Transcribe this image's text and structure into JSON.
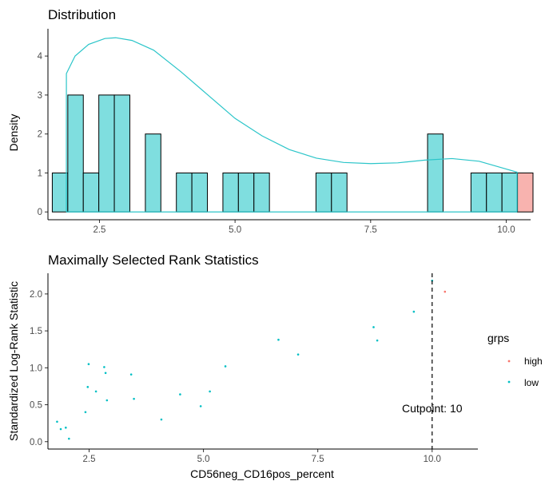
{
  "chart_data": [
    {
      "type": "bar",
      "subtype": "histogram-with-density",
      "title": "Distribution",
      "xlabel": "",
      "ylabel": "Density",
      "xlim": [
        1.55,
        10.45
      ],
      "ylim": [
        -0.2,
        4.7
      ],
      "xticks": [
        2.5,
        5.0,
        7.5,
        10.0
      ],
      "xtick_labels": [
        "2.5",
        "5.0",
        "7.5",
        "10.0"
      ],
      "yticks": [
        0,
        1,
        2,
        3,
        4
      ],
      "ytick_labels": [
        "0",
        "1",
        "2",
        "3",
        "4"
      ],
      "bin_width": 0.286,
      "bars": [
        {
          "x0": 1.63,
          "value": 1,
          "group": "low"
        },
        {
          "x0": 1.916,
          "value": 3,
          "group": "low"
        },
        {
          "x0": 2.202,
          "value": 1,
          "group": "low"
        },
        {
          "x0": 2.488,
          "value": 3,
          "group": "low"
        },
        {
          "x0": 2.774,
          "value": 3,
          "group": "low"
        },
        {
          "x0": 3.346,
          "value": 2,
          "group": "low"
        },
        {
          "x0": 3.918,
          "value": 1,
          "group": "low"
        },
        {
          "x0": 4.204,
          "value": 1,
          "group": "low"
        },
        {
          "x0": 4.776,
          "value": 1,
          "group": "low"
        },
        {
          "x0": 5.062,
          "value": 1,
          "group": "low"
        },
        {
          "x0": 5.348,
          "value": 1,
          "group": "low"
        },
        {
          "x0": 6.492,
          "value": 1,
          "group": "low"
        },
        {
          "x0": 6.778,
          "value": 1,
          "group": "low"
        },
        {
          "x0": 8.55,
          "value": 2,
          "group": "low"
        },
        {
          "x0": 9.35,
          "value": 1,
          "group": "low"
        },
        {
          "x0": 9.636,
          "value": 1,
          "group": "low"
        },
        {
          "x0": 9.922,
          "value": 1,
          "group": "low"
        },
        {
          "x0": 10.208,
          "value": 1,
          "group": "high"
        }
      ],
      "density_curve": [
        [
          1.89,
          3.55
        ],
        [
          2.05,
          4.0
        ],
        [
          2.3,
          4.3
        ],
        [
          2.6,
          4.45
        ],
        [
          2.8,
          4.47
        ],
        [
          3.1,
          4.4
        ],
        [
          3.5,
          4.15
        ],
        [
          4.0,
          3.6
        ],
        [
          4.5,
          3.0
        ],
        [
          5.0,
          2.4
        ],
        [
          5.5,
          1.95
        ],
        [
          6.0,
          1.6
        ],
        [
          6.5,
          1.38
        ],
        [
          7.0,
          1.27
        ],
        [
          7.5,
          1.24
        ],
        [
          8.0,
          1.26
        ],
        [
          8.5,
          1.33
        ],
        [
          9.0,
          1.37
        ],
        [
          9.5,
          1.3
        ],
        [
          10.0,
          1.1
        ],
        [
          10.2,
          1.02
        ]
      ],
      "colors": {
        "low": "#7FDEDF",
        "high": "#F8B3AF",
        "curve": "#2BC5C9",
        "bar_edge": "#000000"
      }
    },
    {
      "type": "scatter",
      "title": "Maximally Selected Rank Statistics",
      "xlabel": "CD56neg_CD16pos_percent",
      "ylabel": "Standardized Log-Rank Statistic",
      "xlim": [
        1.6,
        11.0
      ],
      "ylim": [
        -0.1,
        2.28
      ],
      "xticks": [
        2.5,
        5.0,
        7.5,
        10.0
      ],
      "xtick_labels": [
        "2.5",
        "5.0",
        "7.5",
        "10.0"
      ],
      "yticks": [
        0.0,
        0.5,
        1.0,
        1.5,
        2.0
      ],
      "ytick_labels": [
        "0.0",
        "0.5",
        "1.0",
        "1.5",
        "2.0"
      ],
      "cutpoint": 10.0,
      "cutpoint_label": "Cutpoint: 10",
      "points": [
        {
          "x": 1.8,
          "y": 0.27,
          "group": "low"
        },
        {
          "x": 1.88,
          "y": 0.17,
          "group": "low"
        },
        {
          "x": 1.99,
          "y": 0.19,
          "group": "low"
        },
        {
          "x": 2.06,
          "y": 0.04,
          "group": "low"
        },
        {
          "x": 2.42,
          "y": 0.4,
          "group": "low"
        },
        {
          "x": 2.47,
          "y": 0.74,
          "group": "low"
        },
        {
          "x": 2.49,
          "y": 1.05,
          "group": "low"
        },
        {
          "x": 2.65,
          "y": 0.68,
          "group": "low"
        },
        {
          "x": 2.83,
          "y": 1.01,
          "group": "low"
        },
        {
          "x": 2.86,
          "y": 0.93,
          "group": "low"
        },
        {
          "x": 2.89,
          "y": 0.56,
          "group": "low"
        },
        {
          "x": 3.42,
          "y": 0.91,
          "group": "low"
        },
        {
          "x": 3.48,
          "y": 0.58,
          "group": "low"
        },
        {
          "x": 4.08,
          "y": 0.3,
          "group": "low"
        },
        {
          "x": 4.49,
          "y": 0.64,
          "group": "low"
        },
        {
          "x": 4.94,
          "y": 0.48,
          "group": "low"
        },
        {
          "x": 5.14,
          "y": 0.68,
          "group": "low"
        },
        {
          "x": 5.48,
          "y": 1.02,
          "group": "low"
        },
        {
          "x": 6.64,
          "y": 1.38,
          "group": "low"
        },
        {
          "x": 7.07,
          "y": 1.18,
          "group": "low"
        },
        {
          "x": 8.72,
          "y": 1.55,
          "group": "low"
        },
        {
          "x": 8.8,
          "y": 1.37,
          "group": "low"
        },
        {
          "x": 9.6,
          "y": 1.76,
          "group": "low"
        },
        {
          "x": 10.0,
          "y": 2.18,
          "group": "low"
        },
        {
          "x": 10.28,
          "y": 2.03,
          "group": "high"
        }
      ],
      "legend": {
        "title": "grps",
        "entries": [
          {
            "label": "high",
            "color": "#F8766D"
          },
          {
            "label": "low",
            "color": "#00BFC4"
          }
        ],
        "position": "right"
      },
      "colors": {
        "high": "#F8766D",
        "low": "#00BFC4",
        "cutline": "#000000"
      }
    }
  ]
}
